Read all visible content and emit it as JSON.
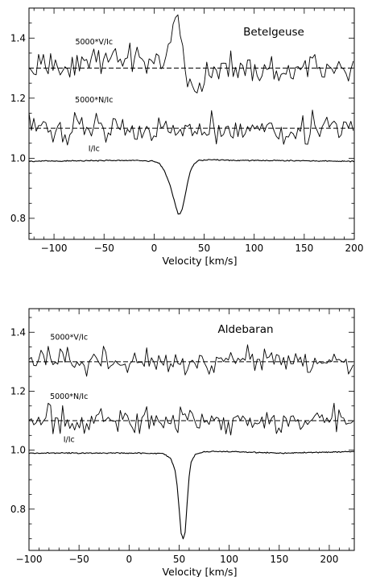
{
  "chart_data": [
    {
      "type": "line",
      "star": "Betelgeuse",
      "xlabel": "Velocity [km/s]",
      "ylabel": "",
      "xlim": [
        -125,
        200
      ],
      "ylim": [
        0.73,
        1.5
      ],
      "xticks": [
        -100,
        -50,
        0,
        50,
        100,
        150,
        200
      ],
      "xtick_labels": [
        "−100",
        "−50",
        "0",
        "50",
        "100",
        "150",
        "200"
      ],
      "yticks": [
        0.8,
        1.0,
        1.2,
        1.4
      ],
      "ytick_labels": [
        "0.8",
        "1.0",
        "1.2",
        "1.4"
      ],
      "grid": false,
      "v_baseline": 1.3,
      "n_baseline": 1.1,
      "series": [
        {
          "name": "5000*V/Ic",
          "label_anchor": [
            -60,
            1.379
          ],
          "x": [
            -125,
            -110,
            -95,
            -80,
            -65,
            -50,
            -35,
            -20,
            -10,
            0,
            5,
            10,
            15,
            18,
            20,
            22,
            24,
            26,
            28,
            30,
            32,
            35,
            40,
            45,
            50,
            55,
            60,
            70,
            80,
            90,
            100,
            110,
            120,
            130,
            140,
            150,
            160,
            170,
            180,
            190,
            200
          ],
          "y": [
            1.285,
            1.3,
            1.315,
            1.305,
            1.325,
            1.33,
            1.335,
            1.345,
            1.32,
            1.325,
            1.33,
            1.34,
            1.38,
            1.42,
            1.44,
            1.45,
            1.465,
            1.43,
            1.38,
            1.34,
            1.28,
            1.245,
            1.24,
            1.235,
            1.26,
            1.28,
            1.295,
            1.305,
            1.31,
            1.3,
            1.295,
            1.305,
            1.3,
            1.29,
            1.305,
            1.3,
            1.295,
            1.3,
            1.3,
            1.29,
            1.295
          ]
        },
        {
          "name": "5000*N/Ic",
          "label_anchor": [
            -60,
            1.186
          ],
          "x": [
            -125,
            -100,
            -75,
            -50,
            -25,
            0,
            25,
            50,
            75,
            100,
            125,
            150,
            175,
            200
          ],
          "y": [
            1.1,
            1.1,
            1.105,
            1.11,
            1.1,
            1.095,
            1.1,
            1.1,
            1.105,
            1.1,
            1.095,
            1.1,
            1.11,
            1.1
          ]
        },
        {
          "name": "I/Ic",
          "label_anchor": [
            -60,
            1.024
          ],
          "x": [
            -125,
            -60,
            -20,
            0,
            5,
            10,
            15,
            18,
            20,
            22,
            24,
            26,
            28,
            30,
            33,
            36,
            40,
            45,
            55,
            80,
            140,
            200
          ],
          "y": [
            0.99,
            0.992,
            0.993,
            0.99,
            0.983,
            0.96,
            0.92,
            0.885,
            0.86,
            0.835,
            0.815,
            0.815,
            0.83,
            0.86,
            0.91,
            0.955,
            0.982,
            0.993,
            0.995,
            0.993,
            0.992,
            0.99
          ]
        }
      ]
    },
    {
      "type": "line",
      "star": "Aldebaran",
      "xlabel": "Velocity [km/s]",
      "ylabel": "",
      "xlim": [
        -100,
        225
      ],
      "ylim": [
        0.66,
        1.48
      ],
      "xticks": [
        -100,
        -50,
        0,
        50,
        100,
        150,
        200
      ],
      "xtick_labels": [
        "−100",
        "−50",
        "0",
        "50",
        "100",
        "150",
        "200"
      ],
      "yticks": [
        0.8,
        1.0,
        1.2,
        1.4
      ],
      "ytick_labels": [
        "0.8",
        "1.0",
        "1.2",
        "1.4"
      ],
      "grid": false,
      "v_baseline": 1.3,
      "n_baseline": 1.1,
      "series": [
        {
          "name": "5000*V/Ic",
          "label_anchor": [
            -60,
            1.375
          ],
          "x": [
            -100,
            -75,
            -50,
            -25,
            0,
            25,
            50,
            75,
            100,
            125,
            150,
            175,
            200,
            225
          ],
          "y": [
            1.3,
            1.305,
            1.3,
            1.3,
            1.295,
            1.3,
            1.305,
            1.3,
            1.3,
            1.3,
            1.305,
            1.3,
            1.3,
            1.3
          ]
        },
        {
          "name": "5000*N/Ic",
          "label_anchor": [
            -60,
            1.174
          ],
          "x": [
            -100,
            -75,
            -50,
            -25,
            0,
            25,
            50,
            75,
            100,
            125,
            150,
            175,
            200,
            225
          ],
          "y": [
            1.105,
            1.1,
            1.105,
            1.1,
            1.1,
            1.095,
            1.1,
            1.1,
            1.1,
            1.095,
            1.1,
            1.105,
            1.1,
            1.1
          ]
        },
        {
          "name": "I/Ic",
          "label_anchor": [
            -60,
            1.027
          ],
          "x": [
            -100,
            -50,
            0,
            20,
            35,
            42,
            46,
            48,
            50,
            52,
            54,
            56,
            58,
            60,
            62,
            66,
            75,
            100,
            150,
            225
          ],
          "y": [
            0.99,
            0.99,
            0.99,
            0.99,
            0.988,
            0.97,
            0.93,
            0.88,
            0.8,
            0.72,
            0.7,
            0.72,
            0.82,
            0.91,
            0.96,
            0.985,
            0.995,
            0.995,
            0.99,
            0.995
          ]
        }
      ]
    }
  ]
}
